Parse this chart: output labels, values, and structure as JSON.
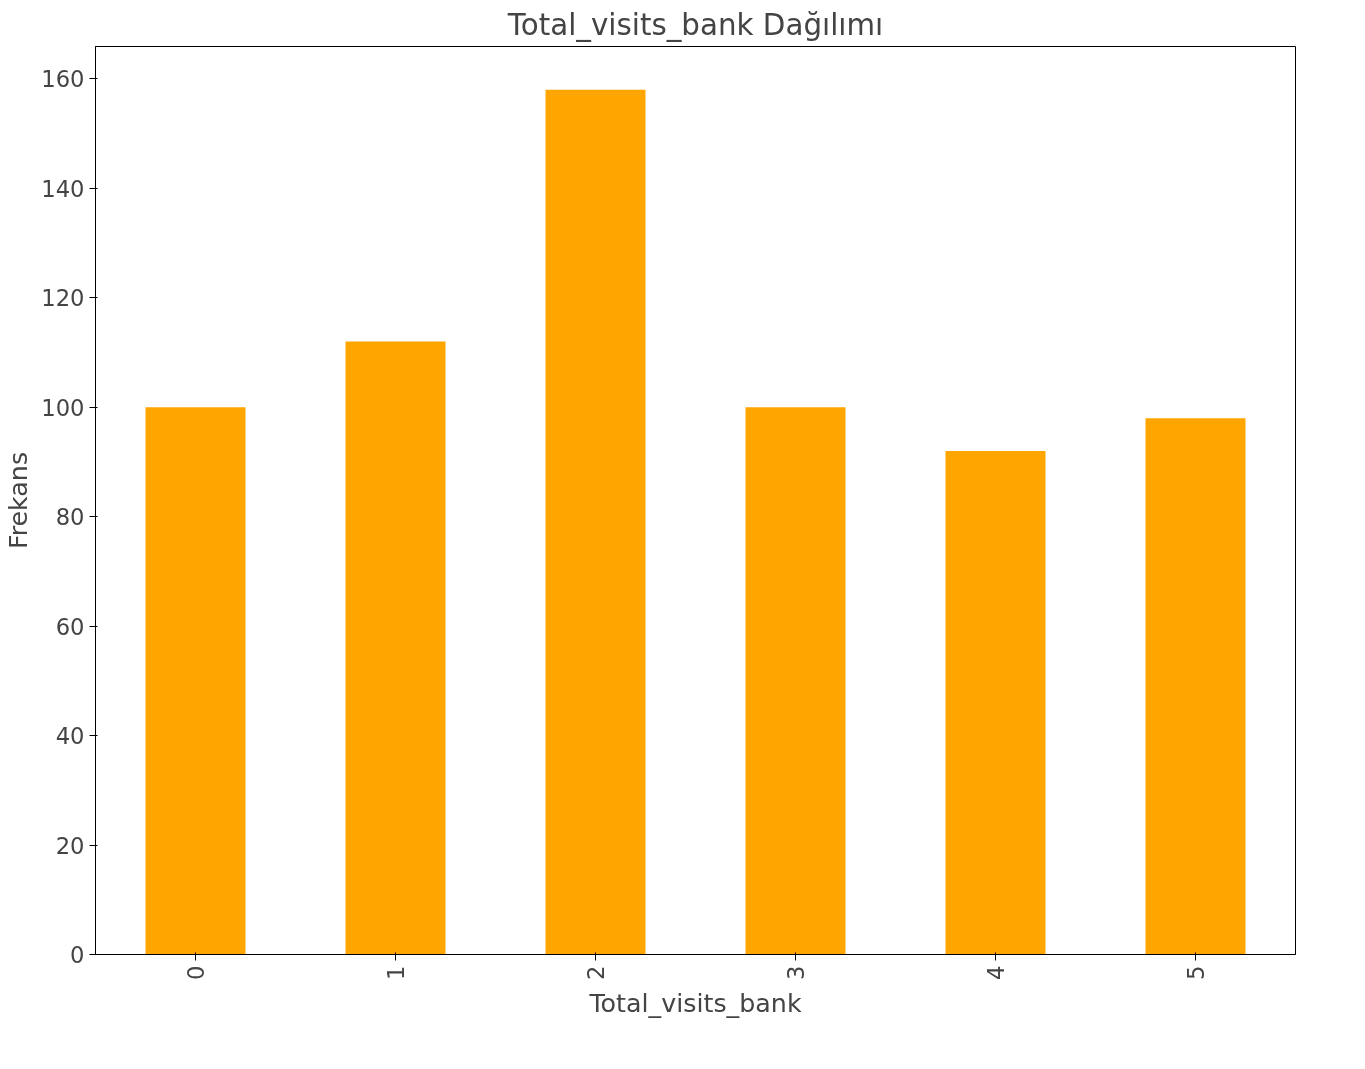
{
  "chart_data": {
    "type": "bar",
    "title": "Total_visits_bank Dağılımı",
    "xlabel": "Total_visits_bank",
    "ylabel": "Frekans",
    "categories": [
      "0",
      "1",
      "2",
      "3",
      "4",
      "5"
    ],
    "values": [
      100,
      112,
      158,
      100,
      92,
      98
    ],
    "color": "#ffa500",
    "ylim": [
      0,
      165.9
    ],
    "yticks": [
      0,
      20,
      40,
      60,
      80,
      100,
      120,
      140,
      160
    ],
    "grid": false
  }
}
